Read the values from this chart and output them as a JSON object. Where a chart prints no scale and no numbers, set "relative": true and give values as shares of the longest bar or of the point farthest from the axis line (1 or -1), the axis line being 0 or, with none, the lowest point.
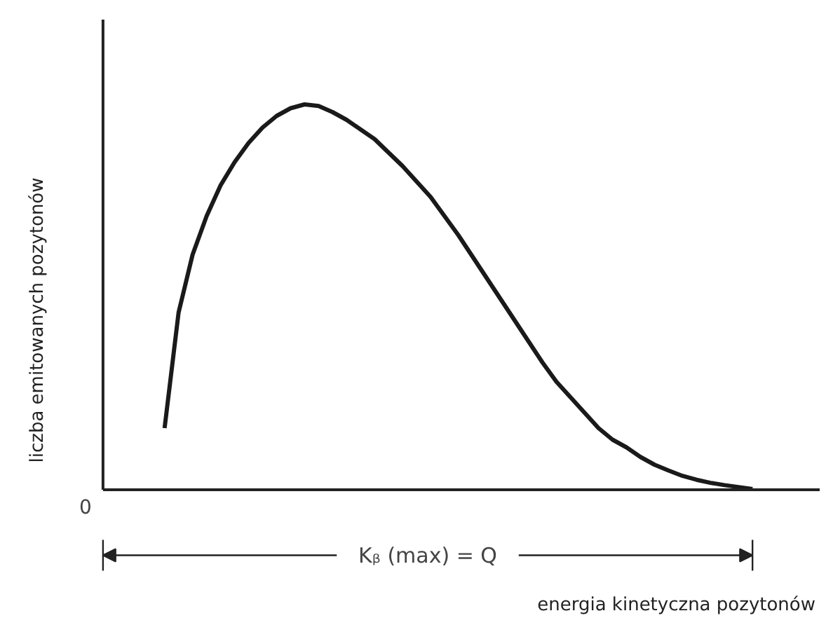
{
  "chart_data": {
    "type": "line",
    "relative": true,
    "ylabel": "liczba emitowanych pozytonów",
    "color": "#1a1a1a",
    "annotations": [
      "0",
      "Kᵦ (max) = Q",
      "energia kinetyczna pozytonów"
    ],
    "categories": [
      null,
      null,
      null,
      null,
      null,
      null,
      null,
      null,
      null,
      null,
      null,
      null,
      null,
      null,
      null,
      null,
      null,
      null,
      null,
      null,
      null,
      null,
      null,
      null,
      null,
      null,
      null,
      null,
      null,
      null,
      null,
      null,
      null,
      null,
      null,
      null,
      null,
      null,
      null,
      null,
      null,
      null,
      null,
      null,
      null,
      null,
      null
    ],
    "values": [
      null,
      null,
      null,
      null,
      0.16,
      0.46,
      0.61,
      0.71,
      0.79,
      0.85,
      0.9,
      0.94,
      0.97,
      0.99,
      1.0,
      0.996,
      0.98,
      0.96,
      0.935,
      0.91,
      0.875,
      0.84,
      0.8,
      0.76,
      0.71,
      0.66,
      0.605,
      0.55,
      0.495,
      0.44,
      0.385,
      0.33,
      0.28,
      0.24,
      0.2,
      0.16,
      0.13,
      0.11,
      0.085,
      0.065,
      0.05,
      0.036,
      0.026,
      0.018,
      0.012,
      0.007,
      0.002
    ]
  }
}
